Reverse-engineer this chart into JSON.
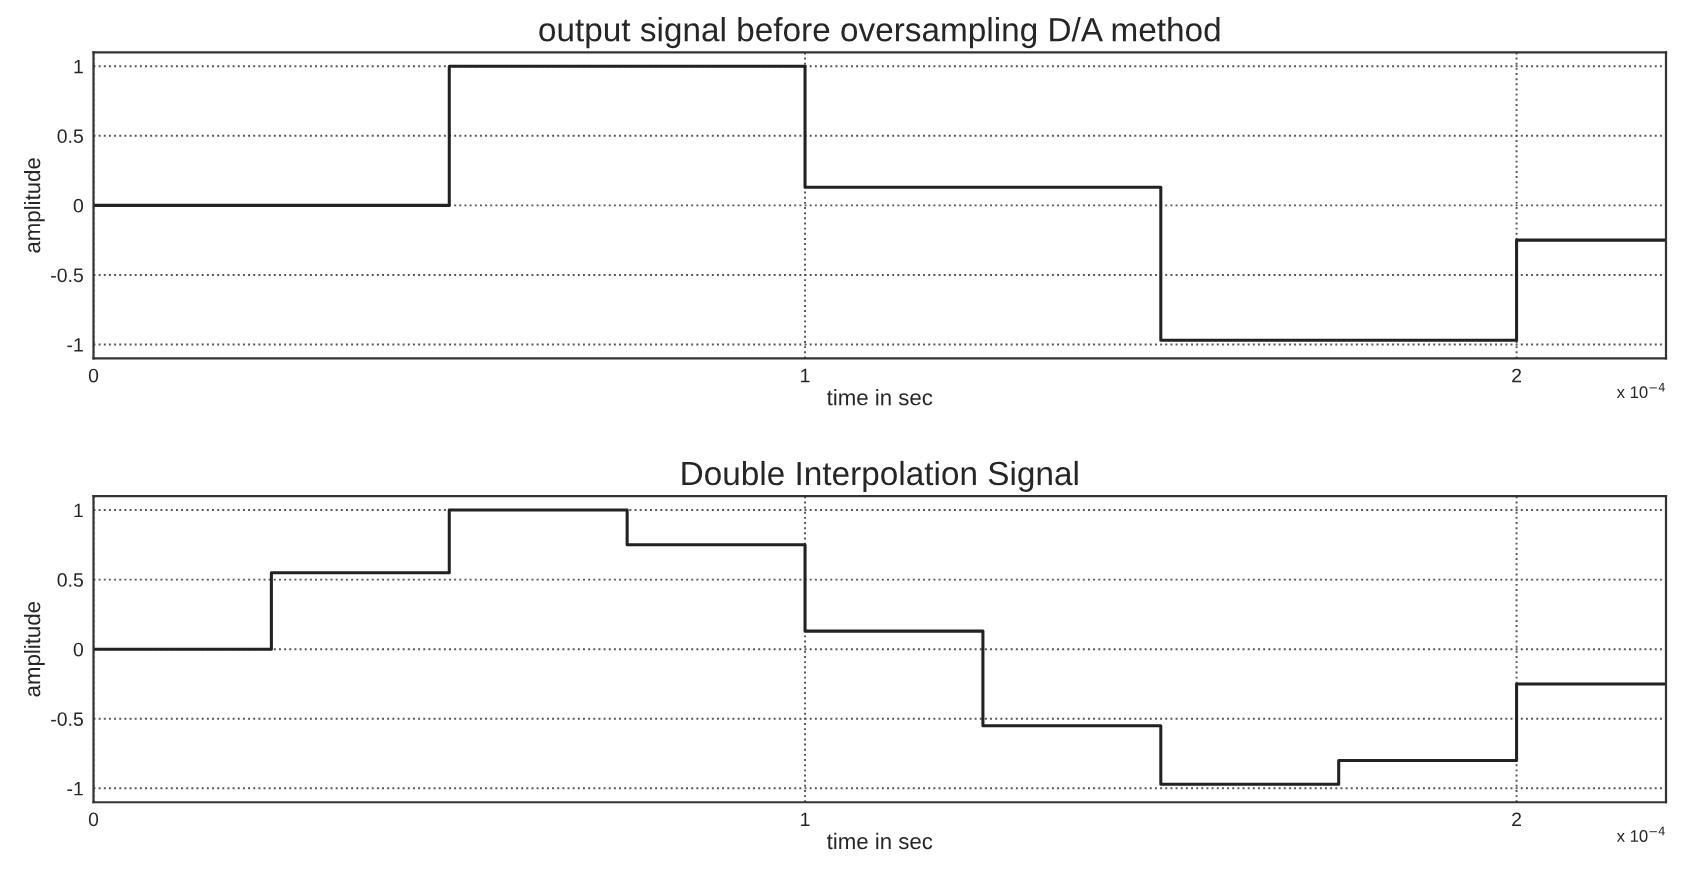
{
  "chart_data": [
    {
      "type": "step",
      "title": "output signal before oversampling D/A method",
      "xlabel": "time in sec",
      "ylabel": "amplitude",
      "xlim": [
        0,
        2.21
      ],
      "ylim": [
        -1.1,
        1.1
      ],
      "xticks": [
        0,
        1,
        2
      ],
      "yticks": [
        -1,
        -0.5,
        0,
        0.5,
        1
      ],
      "grid": true,
      "line_style": "solid",
      "annotations": [
        "x 10$^{−4}$"
      ],
      "series": [
        {
          "color": "#222222",
          "x": [
            0,
            0.5,
            1,
            1.5,
            2,
            2.21
          ],
          "values": [
            0,
            1,
            0.13,
            -0.97,
            -0.25,
            -0.25
          ]
        }
      ]
    },
    {
      "type": "step",
      "title": "Double Interpolation Signal",
      "xlabel": "time in sec",
      "ylabel": "amplitude",
      "xlim": [
        0,
        2.21
      ],
      "ylim": [
        -1.1,
        1.1
      ],
      "xticks": [
        0,
        1,
        2
      ],
      "yticks": [
        -1,
        -0.5,
        0,
        0.5,
        1
      ],
      "grid": true,
      "line_style": "solid",
      "annotations": [
        "x 10$^{−4}$"
      ],
      "series": [
        {
          "color": "#222222",
          "x": [
            0,
            0.25,
            0.5,
            0.75,
            1,
            1.25,
            1.5,
            1.75,
            2,
            2.21
          ],
          "values": [
            0,
            0.55,
            1,
            0.75,
            0.13,
            -0.55,
            -0.97,
            -0.8,
            -0.25,
            -0.25
          ]
        }
      ]
    }
  ]
}
